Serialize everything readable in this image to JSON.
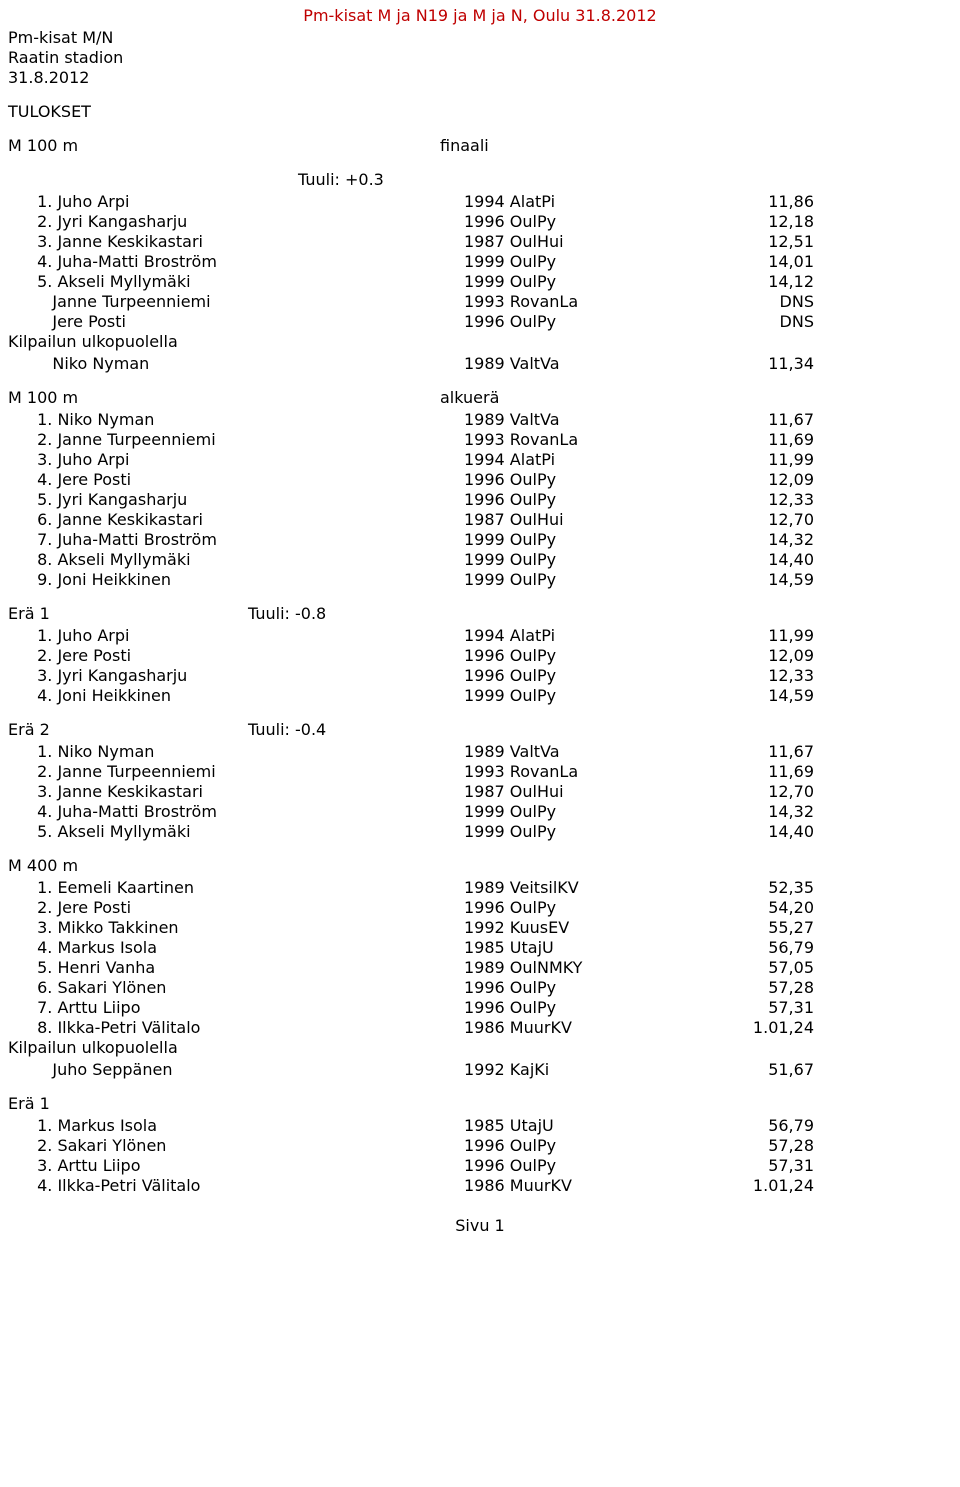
{
  "title_color": "#bf0000",
  "header": {
    "title": "Pm-kisat M ja N19 ja M ja N, Oulu 31.8.2012",
    "meta_lines": [
      "Pm-kisat M/N",
      "Raatin stadion",
      "31.8.2012"
    ],
    "tulokset": "TULOKSET"
  },
  "eventA": {
    "event_label": "M 100 m",
    "final_label": "finaali",
    "wind_label": "Tuuli: +0.3",
    "final_rows": [
      {
        "p": " 1. Juho Arpi",
        "y": "1994 AlatPi",
        "r": "11,86"
      },
      {
        "p": " 2. Jyri Kangasharju",
        "y": "1996 OulPy",
        "r": "12,18"
      },
      {
        "p": " 3. Janne Keskikastari",
        "y": "1987 OulHui",
        "r": "12,51"
      },
      {
        "p": " 4. Juha-Matti Broström",
        "y": "1999 OulPy",
        "r": "14,01"
      },
      {
        "p": " 5. Akseli Myllymäki",
        "y": "1999 OulPy",
        "r": "14,12"
      },
      {
        "p": "    Janne Turpeenniemi",
        "y": "1993 RovanLa",
        "r": "DNS"
      },
      {
        "p": "    Jere Posti",
        "y": "1996 OulPy",
        "r": "DNS"
      }
    ],
    "outside_label": "Kilpailun ulkopuolella",
    "outside_rows": [
      {
        "p": "    Niko Nyman",
        "y": "1989 ValtVa",
        "r": "11,34"
      }
    ],
    "heat_label": "alkuerä",
    "heat_all": [
      {
        "p": " 1. Niko Nyman",
        "y": "1989 ValtVa",
        "r": "11,67"
      },
      {
        "p": " 2. Janne Turpeenniemi",
        "y": "1993 RovanLa",
        "r": "11,69"
      },
      {
        "p": " 3. Juho Arpi",
        "y": "1994 AlatPi",
        "r": "11,99"
      },
      {
        "p": " 4. Jere Posti",
        "y": "1996 OulPy",
        "r": "12,09"
      },
      {
        "p": " 5. Jyri Kangasharju",
        "y": "1996 OulPy",
        "r": "12,33"
      },
      {
        "p": " 6. Janne Keskikastari",
        "y": "1987 OulHui",
        "r": "12,70"
      },
      {
        "p": " 7. Juha-Matti Broström",
        "y": "1999 OulPy",
        "r": "14,32"
      },
      {
        "p": " 8. Akseli Myllymäki",
        "y": "1999 OulPy",
        "r": "14,40"
      },
      {
        "p": " 9. Joni Heikkinen",
        "y": "1999 OulPy",
        "r": "14,59"
      }
    ],
    "era1_label": "Erä 1",
    "era1_wind": "Tuuli: -0.8",
    "era1_rows": [
      {
        "p": " 1. Juho Arpi",
        "y": "1994 AlatPi",
        "r": "11,99"
      },
      {
        "p": " 2. Jere Posti",
        "y": "1996 OulPy",
        "r": "12,09"
      },
      {
        "p": " 3. Jyri Kangasharju",
        "y": "1996 OulPy",
        "r": "12,33"
      },
      {
        "p": " 4. Joni Heikkinen",
        "y": "1999 OulPy",
        "r": "14,59"
      }
    ],
    "era2_label": "Erä 2",
    "era2_wind": "Tuuli: -0.4",
    "era2_rows": [
      {
        "p": " 1. Niko Nyman",
        "y": "1989 ValtVa",
        "r": "11,67"
      },
      {
        "p": " 2. Janne Turpeenniemi",
        "y": "1993 RovanLa",
        "r": "11,69"
      },
      {
        "p": " 3. Janne Keskikastari",
        "y": "1987 OulHui",
        "r": "12,70"
      },
      {
        "p": " 4. Juha-Matti Broström",
        "y": "1999 OulPy",
        "r": "14,32"
      },
      {
        "p": " 5. Akseli Myllymäki",
        "y": "1999 OulPy",
        "r": "14,40"
      }
    ]
  },
  "eventB": {
    "event_label": "M 400 m",
    "rows": [
      {
        "p": " 1. Eemeli Kaartinen",
        "y": "1989 VeitsilKV",
        "r": "52,35"
      },
      {
        "p": " 2. Jere Posti",
        "y": "1996 OulPy",
        "r": "54,20"
      },
      {
        "p": " 3. Mikko Takkinen",
        "y": "1992 KuusEV",
        "r": "55,27"
      },
      {
        "p": " 4. Markus Isola",
        "y": "1985 UtajU",
        "r": "56,79"
      },
      {
        "p": " 5. Henri Vanha",
        "y": "1989 OulNMKY",
        "r": "57,05"
      },
      {
        "p": " 6. Sakari Ylönen",
        "y": "1996 OulPy",
        "r": "57,28"
      },
      {
        "p": " 7. Arttu Liipo",
        "y": "1996 OulPy",
        "r": "57,31"
      },
      {
        "p": " 8. Ilkka-Petri Välitalo",
        "y": "1986 MuurKV",
        "r": "1.01,24"
      }
    ],
    "outside_label": "Kilpailun ulkopuolella",
    "outside_rows": [
      {
        "p": "    Juho Seppänen",
        "y": "1992 KajKi",
        "r": "51,67"
      }
    ],
    "era1_label": "Erä 1",
    "era1_rows": [
      {
        "p": " 1. Markus Isola",
        "y": "1985 UtajU",
        "r": "56,79"
      },
      {
        "p": " 2. Sakari Ylönen",
        "y": "1996 OulPy",
        "r": "57,28"
      },
      {
        "p": " 3. Arttu Liipo",
        "y": "1996 OulPy",
        "r": "57,31"
      },
      {
        "p": " 4. Ilkka-Petri Välitalo",
        "y": "1986 MuurKV",
        "r": "1.01,24"
      }
    ]
  },
  "footer": "Sivu 1"
}
